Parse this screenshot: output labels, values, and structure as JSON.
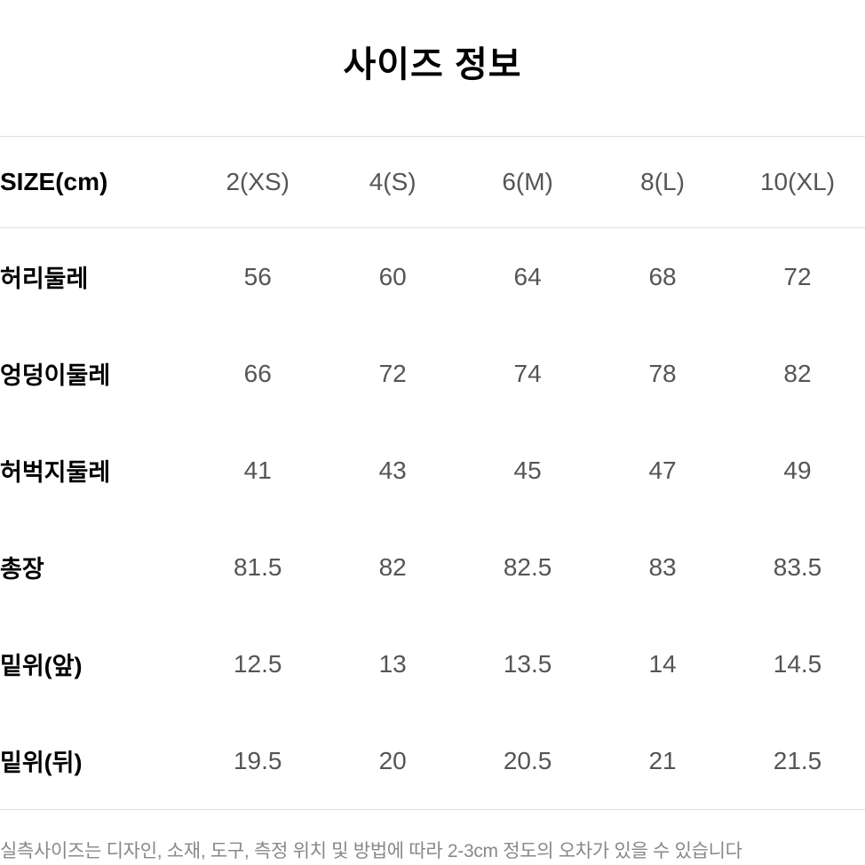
{
  "title": "사이즈 정보",
  "table": {
    "header_label": "SIZE(cm)",
    "sizes": [
      "2(XS)",
      "4(S)",
      "6(M)",
      "8(L)",
      "10(XL)"
    ],
    "rows": [
      {
        "label": "허리둘레",
        "values": [
          "56",
          "60",
          "64",
          "68",
          "72"
        ]
      },
      {
        "label": "엉덩이둘레",
        "values": [
          "66",
          "72",
          "74",
          "78",
          "82"
        ]
      },
      {
        "label": "허벅지둘레",
        "values": [
          "41",
          "43",
          "45",
          "47",
          "49"
        ]
      },
      {
        "label": "총장",
        "values": [
          "81.5",
          "82",
          "82.5",
          "83",
          "83.5"
        ]
      },
      {
        "label": "밑위(앞)",
        "values": [
          "12.5",
          "13",
          "13.5",
          "14",
          "14.5"
        ]
      },
      {
        "label": "밑위(뒤)",
        "values": [
          "19.5",
          "20",
          "20.5",
          "21",
          "21.5"
        ]
      }
    ]
  },
  "footnote": "실측사이즈는 디자인, 소재, 도구, 측정 위치 및 방법에 따라 2-3cm  정도의 오차가 있을 수 있습니다",
  "colors": {
    "background": "#ffffff",
    "title_text": "#000000",
    "header_text": "#555555",
    "label_text": "#000000",
    "value_text": "#555555",
    "border": "#dddddd",
    "footnote_text": "#888888"
  },
  "typography": {
    "title_fontsize": 40,
    "title_weight": 900,
    "header_fontsize": 28,
    "cell_fontsize": 28,
    "label_fontsize": 27,
    "footnote_fontsize": 21
  }
}
